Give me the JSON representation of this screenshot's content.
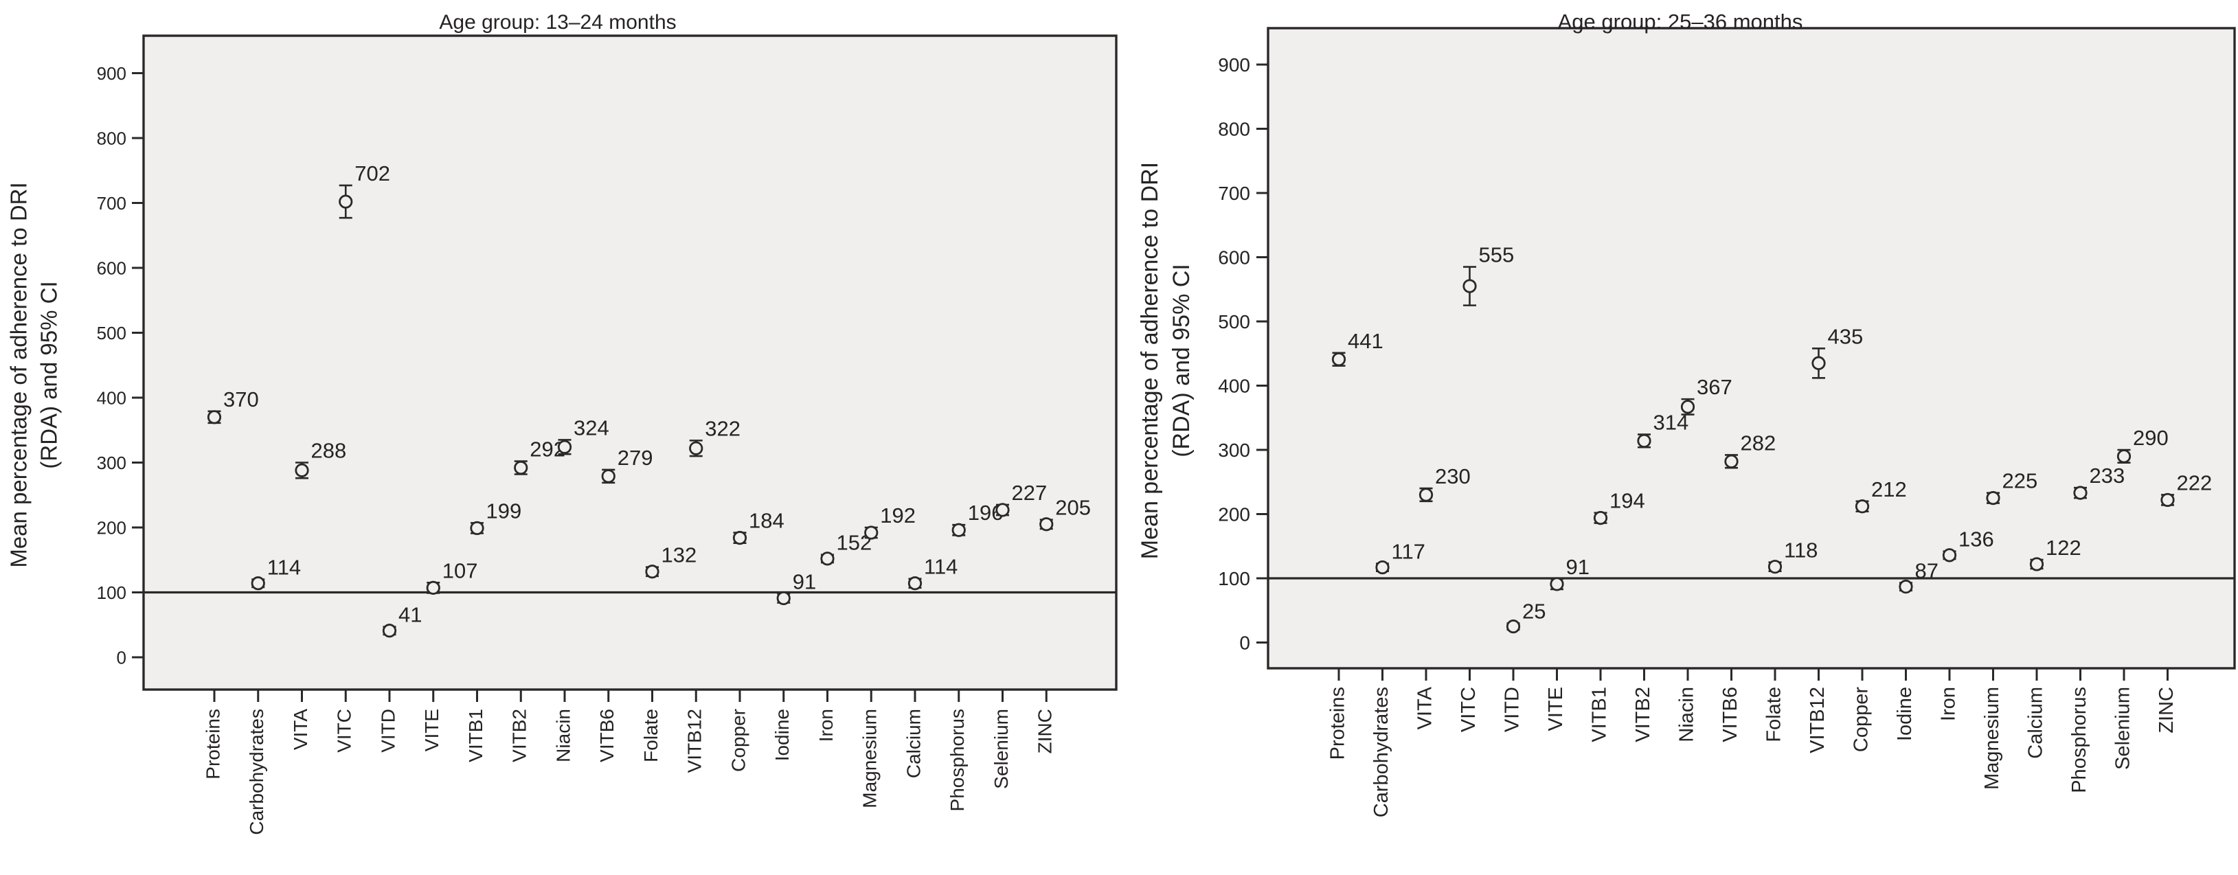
{
  "figure": {
    "background": "#ffffff",
    "panel_background": "#f0efed",
    "line_color": "#2b2829",
    "text_color": "#262324",
    "y_axis_title_lines": [
      "Mean percentage of adherence to DRI",
      "(RDA) and 95% CI"
    ],
    "y_ticks": [
      0,
      100,
      200,
      300,
      400,
      500,
      600,
      700,
      800,
      900
    ],
    "reference_value": 100
  },
  "chart_data": [
    {
      "type": "scatter",
      "title": "Age group: 13–24 months",
      "ylabel": "Mean percentage of adherence to DRI (RDA) and 95% CI",
      "xlabel": "",
      "ylim": [
        -50,
        960
      ],
      "grid": false,
      "legend": "none",
      "marker": "open-circle-with-95ci-error-bars",
      "reference_line": 100,
      "categories": [
        "Proteins",
        "Carbohydrates",
        "VITA",
        "VITC",
        "VITD",
        "VITE",
        "VITB1",
        "VITB2",
        "Niacin",
        "VITB6",
        "Folate",
        "VITB12",
        "Copper",
        "Iodine",
        "Iron",
        "Magnesium",
        "Calcium",
        "Phosphorus",
        "Selenium",
        "ZINC"
      ],
      "values": [
        370,
        114,
        288,
        702,
        41,
        107,
        199,
        292,
        324,
        279,
        132,
        322,
        184,
        91,
        152,
        192,
        114,
        196,
        227,
        205
      ],
      "ci_half": [
        9,
        6,
        12,
        25,
        6,
        8,
        8,
        10,
        11,
        10,
        7,
        12,
        8,
        7,
        6,
        8,
        7,
        8,
        8,
        7
      ]
    },
    {
      "type": "scatter",
      "title": "Age group: 25–36 months",
      "ylabel": "Mean percentage of adherence to DRI (RDA) and 95% CI",
      "xlabel": "",
      "ylim": [
        -50,
        960
      ],
      "grid": false,
      "legend": "none",
      "marker": "open-circle-with-95ci-error-bars",
      "reference_line": 100,
      "categories": [
        "Proteins",
        "Carbohydrates",
        "VITA",
        "VITC",
        "VITD",
        "VITE",
        "VITB1",
        "VITB2",
        "Niacin",
        "VITB6",
        "Folate",
        "VITB12",
        "Copper",
        "Iodine",
        "Iron",
        "Magnesium",
        "Calcium",
        "Phosphorus",
        "Selenium",
        "ZINC"
      ],
      "values": [
        441,
        117,
        230,
        555,
        25,
        91,
        194,
        314,
        367,
        282,
        118,
        435,
        212,
        87,
        136,
        225,
        122,
        233,
        290,
        222
      ],
      "ci_half": [
        10,
        6,
        10,
        30,
        5,
        8,
        8,
        10,
        12,
        10,
        7,
        23,
        8,
        6,
        6,
        8,
        7,
        8,
        10,
        8
      ]
    }
  ]
}
